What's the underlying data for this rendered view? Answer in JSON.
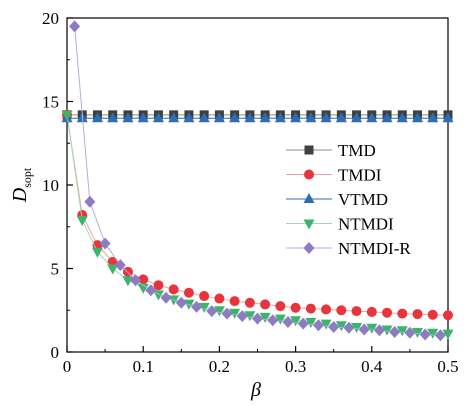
{
  "chart_data": {
    "type": "line",
    "xlabel": "β",
    "ylabel_main": "D",
    "ylabel_sub": "sopt",
    "xlim": [
      0,
      0.5
    ],
    "ylim": [
      0,
      20
    ],
    "xticks": [
      0,
      0.1,
      0.2,
      0.3,
      0.4,
      0.5
    ],
    "xtick_labels": [
      "0",
      "0.1",
      "0.2",
      "0.3",
      "0.4",
      "0.5"
    ],
    "yticks": [
      0,
      5,
      10,
      15,
      20
    ],
    "ytick_labels": [
      "0",
      "5",
      "10",
      "15",
      "20"
    ],
    "grid": false,
    "legend_position": "center-right",
    "series": [
      {
        "name": "TMD",
        "marker": "square",
        "color": "#3f3f3f",
        "line_color": "#8c8c8c",
        "x": [
          0,
          0.02,
          0.04,
          0.06,
          0.08,
          0.1,
          0.12,
          0.14,
          0.16,
          0.18,
          0.2,
          0.22,
          0.24,
          0.26,
          0.28,
          0.3,
          0.32,
          0.34,
          0.36,
          0.38,
          0.4,
          0.42,
          0.44,
          0.46,
          0.48,
          0.5
        ],
        "y": [
          14.2,
          14.2,
          14.2,
          14.2,
          14.2,
          14.2,
          14.2,
          14.2,
          14.2,
          14.2,
          14.2,
          14.2,
          14.2,
          14.2,
          14.2,
          14.2,
          14.2,
          14.2,
          14.2,
          14.2,
          14.2,
          14.2,
          14.2,
          14.2,
          14.2,
          14.2
        ]
      },
      {
        "name": "TMDI",
        "marker": "circle",
        "color": "#e8343c",
        "line_color": "#f2a0a3",
        "x": [
          0,
          0.02,
          0.04,
          0.06,
          0.08,
          0.1,
          0.12,
          0.14,
          0.16,
          0.18,
          0.2,
          0.22,
          0.24,
          0.26,
          0.28,
          0.3,
          0.32,
          0.34,
          0.36,
          0.38,
          0.4,
          0.42,
          0.44,
          0.46,
          0.48,
          0.5
        ],
        "y": [
          14.2,
          8.2,
          6.4,
          5.4,
          4.8,
          4.35,
          4.0,
          3.75,
          3.55,
          3.35,
          3.2,
          3.05,
          2.95,
          2.85,
          2.75,
          2.65,
          2.6,
          2.55,
          2.5,
          2.45,
          2.4,
          2.35,
          2.3,
          2.27,
          2.23,
          2.2
        ]
      },
      {
        "name": "VTMD",
        "marker": "triangle-up",
        "color": "#2e6db4",
        "line_color": "#2e6db4",
        "x": [
          0,
          0.02,
          0.04,
          0.06,
          0.08,
          0.1,
          0.12,
          0.14,
          0.16,
          0.18,
          0.2,
          0.22,
          0.24,
          0.26,
          0.28,
          0.3,
          0.32,
          0.34,
          0.36,
          0.38,
          0.4,
          0.42,
          0.44,
          0.46,
          0.48,
          0.5
        ],
        "y": [
          14.0,
          14.0,
          14.0,
          14.0,
          14.0,
          14.0,
          14.0,
          14.0,
          14.0,
          14.0,
          14.0,
          14.0,
          14.0,
          14.0,
          14.0,
          14.0,
          14.0,
          14.0,
          14.0,
          14.0,
          14.0,
          14.0,
          14.0,
          14.0,
          14.0,
          14.0
        ]
      },
      {
        "name": "NTMDI",
        "marker": "triangle-down",
        "color": "#3cb46e",
        "line_color": "#9fd8b4",
        "x": [
          0,
          0.02,
          0.04,
          0.06,
          0.08,
          0.1,
          0.12,
          0.14,
          0.16,
          0.18,
          0.2,
          0.22,
          0.24,
          0.26,
          0.28,
          0.3,
          0.32,
          0.34,
          0.36,
          0.38,
          0.4,
          0.42,
          0.44,
          0.46,
          0.48,
          0.5
        ],
        "y": [
          14.2,
          7.9,
          6.0,
          5.0,
          4.3,
          3.85,
          3.45,
          3.15,
          2.9,
          2.7,
          2.5,
          2.35,
          2.2,
          2.1,
          2.0,
          1.9,
          1.8,
          1.7,
          1.6,
          1.5,
          1.45,
          1.35,
          1.3,
          1.2,
          1.15,
          1.1
        ]
      },
      {
        "name": "NTMDI-R",
        "marker": "diamond",
        "color": "#8e7cc3",
        "line_color": "#b8acdc",
        "x": [
          0.01,
          0.03,
          0.05,
          0.07,
          0.09,
          0.11,
          0.13,
          0.15,
          0.17,
          0.19,
          0.21,
          0.23,
          0.25,
          0.27,
          0.29,
          0.31,
          0.33,
          0.35,
          0.37,
          0.39,
          0.41,
          0.43,
          0.45,
          0.47,
          0.49
        ],
        "y": [
          19.5,
          9.0,
          6.5,
          5.2,
          4.3,
          3.7,
          3.25,
          2.95,
          2.7,
          2.45,
          2.3,
          2.15,
          2.0,
          1.9,
          1.8,
          1.7,
          1.6,
          1.5,
          1.45,
          1.35,
          1.3,
          1.2,
          1.15,
          1.05,
          1.0
        ]
      }
    ]
  }
}
